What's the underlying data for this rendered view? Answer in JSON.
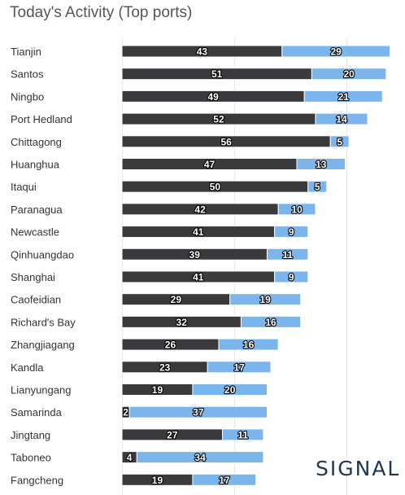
{
  "title": "Today's Activity (Top ports)",
  "logo_text": "SIGNAL",
  "colors": {
    "dark_bar": "#3a3a3c",
    "light_bar": "#7cb5ec",
    "grid": "#e6e6e6",
    "label_text": "#333333",
    "value_text": "#ffffff"
  },
  "chart_data": {
    "type": "bar",
    "orientation": "horizontal",
    "stacked": true,
    "grid": true,
    "categories": [
      "Tianjin",
      "Santos",
      "Ningbo",
      "Port Hedland",
      "Chittagong",
      "Huanghua",
      "Itaqui",
      "Paranagua",
      "Newcastle",
      "Qinhuangdao",
      "Shanghai",
      "Caofeidian",
      "Richard's Bay",
      "Zhangjiagang",
      "Kandla",
      "Lianyungang",
      "Samarinda",
      "Jingtang",
      "Taboneo",
      "Fangcheng"
    ],
    "series": [
      {
        "values": [
          43,
          51,
          49,
          52,
          56,
          47,
          50,
          42,
          41,
          39,
          41,
          29,
          32,
          26,
          23,
          19,
          2,
          27,
          4,
          19
        ]
      },
      {
        "values": [
          29,
          20,
          21,
          14,
          5,
          13,
          5,
          10,
          9,
          11,
          9,
          19,
          16,
          16,
          17,
          20,
          37,
          11,
          34,
          17
        ]
      }
    ],
    "xlim": [
      0,
      75
    ]
  }
}
